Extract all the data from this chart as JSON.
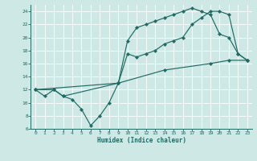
{
  "xlabel": "Humidex (Indice chaleur)",
  "xlim": [
    -0.5,
    23.5
  ],
  "ylim": [
    6,
    25
  ],
  "yticks": [
    6,
    8,
    10,
    12,
    14,
    16,
    18,
    20,
    22,
    24
  ],
  "xticks": [
    0,
    1,
    2,
    3,
    4,
    5,
    6,
    7,
    8,
    9,
    10,
    11,
    12,
    13,
    14,
    15,
    16,
    17,
    18,
    19,
    20,
    21,
    22,
    23
  ],
  "bg_color": "#cde8e5",
  "grid_color": "#ffffff",
  "line_color": "#1e6b65",
  "lines": [
    {
      "x": [
        0,
        1,
        2,
        3,
        4,
        5,
        6,
        7,
        8,
        9,
        10,
        11,
        12,
        13,
        14,
        15,
        16,
        17,
        18,
        19,
        20,
        21,
        22,
        23
      ],
      "y": [
        12,
        11,
        12,
        11,
        10.5,
        9,
        6.5,
        8,
        10,
        13,
        19.5,
        21.5,
        22,
        22.5,
        23,
        23.5,
        24,
        24.5,
        24,
        23.5,
        20.5,
        20,
        17.5,
        16.5
      ]
    },
    {
      "x": [
        0,
        2,
        3,
        9,
        10,
        11,
        12,
        13,
        14,
        15,
        16,
        17,
        18,
        19,
        20,
        21,
        22,
        23
      ],
      "y": [
        12,
        12,
        11,
        13,
        17.5,
        17,
        17.5,
        18,
        19,
        19.5,
        20,
        22,
        23,
        24,
        24,
        23.5,
        17.5,
        16.5
      ]
    },
    {
      "x": [
        0,
        9,
        14,
        19,
        21,
        23
      ],
      "y": [
        12,
        13,
        15,
        16,
        16.5,
        16.5
      ]
    }
  ]
}
